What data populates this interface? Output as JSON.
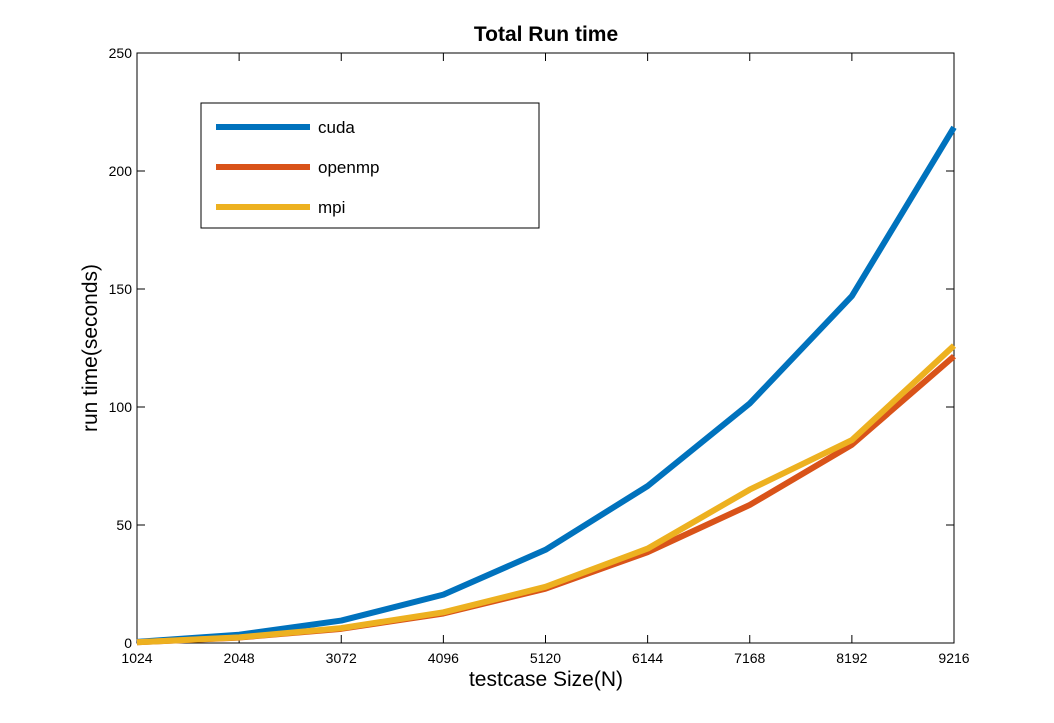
{
  "chart_data": {
    "type": "line",
    "title": "Total Run time",
    "xlabel": "testcase Size(N)",
    "ylabel": "run time(seconds)",
    "x": [
      1024,
      2048,
      3072,
      4096,
      5120,
      6144,
      7168,
      8192,
      9216
    ],
    "xticks": [
      "1024",
      "2048",
      "3072",
      "4096",
      "5120",
      "6144",
      "7168",
      "8192",
      "9216"
    ],
    "yticks": [
      "0",
      "50",
      "100",
      "150",
      "200",
      "250"
    ],
    "xlim": [
      1024,
      9216
    ],
    "ylim": [
      0,
      250
    ],
    "grid": false,
    "legend_position": "top-left",
    "series": [
      {
        "name": "cuda",
        "color": "#0072bd",
        "values": [
          0.5,
          3.5,
          9.5,
          20.5,
          39.5,
          66.5,
          101.5,
          147,
          218.5
        ]
      },
      {
        "name": "openmp",
        "color": "#d95319",
        "values": [
          0.3,
          2.3,
          6,
          12.5,
          23,
          38.5,
          58.5,
          84,
          121.5
        ]
      },
      {
        "name": "mpi",
        "color": "#edb120",
        "values": [
          0.3,
          2.4,
          6.3,
          13,
          23.8,
          40,
          65,
          86,
          126
        ]
      }
    ]
  }
}
